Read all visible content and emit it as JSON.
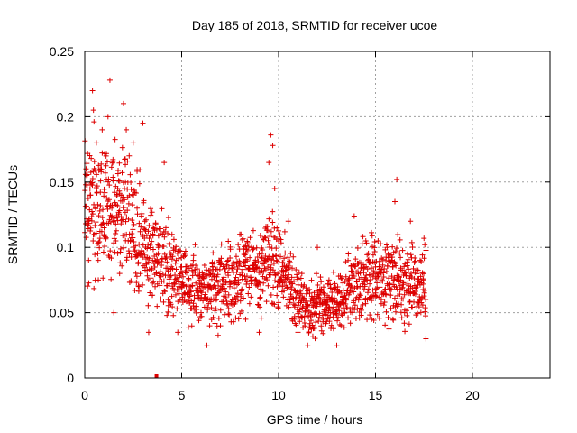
{
  "chart_data": {
    "type": "scatter",
    "title": "Day 185 of 2018, SRMTID for receiver ucoe",
    "xlabel": "GPS time / hours",
    "ylabel": "SRMTID / TECUs",
    "xlim": [
      0,
      24
    ],
    "ylim": [
      0,
      0.25
    ],
    "xticks": [
      0,
      5,
      10,
      15,
      20
    ],
    "xtick_labels": [
      "0",
      "5",
      "10",
      "15",
      "20"
    ],
    "yticks": [
      0,
      0.05,
      0.1,
      0.15,
      0.2,
      0.25
    ],
    "ytick_labels": [
      "0",
      "0.05",
      "0.1",
      "0.15",
      "0.2",
      "0.25"
    ],
    "grid": true,
    "marker": "+",
    "color": "#dd0000",
    "series": [
      {
        "name": "SRMTID",
        "trend_hours": [
          0,
          0.5,
          1,
          1.5,
          2,
          2.5,
          3,
          3.5,
          4,
          4.5,
          5,
          6,
          7,
          8,
          9,
          9.5,
          10,
          10.5,
          11,
          11.5,
          12,
          13,
          14,
          14.5,
          15,
          15.5,
          16,
          16.5,
          17,
          17.6
        ],
        "trend_values": [
          0.13,
          0.135,
          0.125,
          0.13,
          0.125,
          0.12,
          0.11,
          0.095,
          0.085,
          0.08,
          0.075,
          0.068,
          0.07,
          0.075,
          0.082,
          0.09,
          0.085,
          0.075,
          0.062,
          0.055,
          0.055,
          0.058,
          0.07,
          0.075,
          0.078,
          0.075,
          0.075,
          0.073,
          0.072,
          0.07
        ],
        "points": [
          [
            0.05,
            0.148
          ],
          [
            0.1,
            0.155
          ],
          [
            0.15,
            0.12
          ],
          [
            0.2,
            0.09
          ],
          [
            0.3,
            0.14
          ],
          [
            0.4,
            0.22
          ],
          [
            0.45,
            0.205
          ],
          [
            0.5,
            0.11
          ],
          [
            0.6,
            0.18
          ],
          [
            0.7,
            0.075
          ],
          [
            0.8,
            0.16
          ],
          [
            0.9,
            0.19
          ],
          [
            1.0,
            0.115
          ],
          [
            1.1,
            0.17
          ],
          [
            1.2,
            0.2
          ],
          [
            1.3,
            0.228
          ],
          [
            1.4,
            0.13
          ],
          [
            1.5,
            0.05
          ],
          [
            1.6,
            0.105
          ],
          [
            1.7,
            0.145
          ],
          [
            1.8,
            0.08
          ],
          [
            2.0,
            0.21
          ],
          [
            2.1,
            0.15
          ],
          [
            2.3,
            0.095
          ],
          [
            2.5,
            0.18
          ],
          [
            2.7,
            0.13
          ],
          [
            2.8,
            0.07
          ],
          [
            3.0,
            0.195
          ],
          [
            3.1,
            0.12
          ],
          [
            3.3,
            0.035
          ],
          [
            3.5,
            0.09
          ],
          [
            3.8,
            0.1
          ],
          [
            4.1,
            0.165
          ],
          [
            4.3,
            0.06
          ],
          [
            4.5,
            0.11
          ],
          [
            4.8,
            0.035
          ],
          [
            5.0,
            0.085
          ],
          [
            5.3,
            0.065
          ],
          [
            5.6,
            0.09
          ],
          [
            6.0,
            0.05
          ],
          [
            6.3,
            0.025
          ],
          [
            6.6,
            0.08
          ],
          [
            7.0,
            0.04
          ],
          [
            7.4,
            0.09
          ],
          [
            7.8,
            0.06
          ],
          [
            8.0,
            0.11
          ],
          [
            8.3,
            0.045
          ],
          [
            8.6,
            0.075
          ],
          [
            9.0,
            0.035
          ],
          [
            9.3,
            0.09
          ],
          [
            9.5,
            0.165
          ],
          [
            9.6,
            0.186
          ],
          [
            9.7,
            0.178
          ],
          [
            9.8,
            0.145
          ],
          [
            10.0,
            0.105
          ],
          [
            10.2,
            0.07
          ],
          [
            10.5,
            0.12
          ],
          [
            10.7,
            0.045
          ],
          [
            11.0,
            0.035
          ],
          [
            11.2,
            0.08
          ],
          [
            11.5,
            0.025
          ],
          [
            11.8,
            0.06
          ],
          [
            12.0,
            0.1
          ],
          [
            12.3,
            0.045
          ],
          [
            12.6,
            0.075
          ],
          [
            13.0,
            0.025
          ],
          [
            13.3,
            0.06
          ],
          [
            13.6,
            0.095
          ],
          [
            13.9,
            0.124
          ],
          [
            14.2,
            0.07
          ],
          [
            14.5,
            0.105
          ],
          [
            14.8,
            0.045
          ],
          [
            15.0,
            0.085
          ],
          [
            15.3,
            0.06
          ],
          [
            15.6,
            0.1
          ],
          [
            15.9,
            0.045
          ],
          [
            16.0,
            0.135
          ],
          [
            16.1,
            0.152
          ],
          [
            16.3,
            0.075
          ],
          [
            16.5,
            0.05
          ],
          [
            16.8,
            0.12
          ],
          [
            17.0,
            0.065
          ],
          [
            17.3,
            0.09
          ],
          [
            17.5,
            0.107
          ],
          [
            17.6,
            0.03
          ]
        ]
      },
      {
        "name": "zero marker",
        "points": [
          [
            3.7,
            0.0
          ]
        ],
        "marker": "square"
      }
    ]
  }
}
